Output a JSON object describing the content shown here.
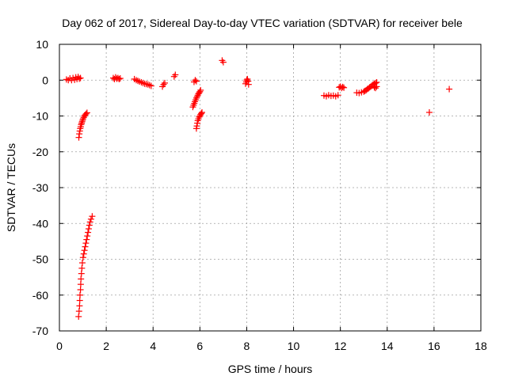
{
  "chart_data": {
    "type": "scatter",
    "title": "Day 062 of 2017, Sidereal Day-to-day VTEC variation (SDTVAR) for receiver bele",
    "xlabel": "GPS time / hours",
    "ylabel": "SDTVAR / TECUs",
    "xlim": [
      0,
      18
    ],
    "ylim": [
      -70,
      10
    ],
    "xticks": [
      0,
      2,
      4,
      6,
      8,
      10,
      12,
      14,
      16,
      18
    ],
    "yticks": [
      -70,
      -60,
      -50,
      -40,
      -30,
      -20,
      -10,
      0,
      10
    ],
    "grid": true,
    "marker": "+",
    "color": "#ff0000",
    "series": [
      {
        "name": "SDTVAR",
        "points": [
          [
            0.3,
            0.2
          ],
          [
            0.38,
            0.0
          ],
          [
            0.45,
            0.5
          ],
          [
            0.52,
            0.0
          ],
          [
            0.58,
            0.6
          ],
          [
            0.65,
            0.1
          ],
          [
            0.7,
            0.8
          ],
          [
            0.75,
            0.3
          ],
          [
            0.8,
            0.9
          ],
          [
            0.85,
            0.4
          ],
          [
            0.9,
            0.6
          ],
          [
            0.83,
            -16.0
          ],
          [
            0.85,
            -15.0
          ],
          [
            0.87,
            -14.2
          ],
          [
            0.89,
            -13.5
          ],
          [
            0.91,
            -13.0
          ],
          [
            0.93,
            -12.4
          ],
          [
            0.95,
            -12.0
          ],
          [
            0.97,
            -11.6
          ],
          [
            0.99,
            -11.2
          ],
          [
            1.01,
            -10.8
          ],
          [
            1.04,
            -10.4
          ],
          [
            1.07,
            -10.0
          ],
          [
            1.1,
            -9.7
          ],
          [
            1.14,
            -9.4
          ],
          [
            1.18,
            -9.1
          ],
          [
            0.82,
            -66.0
          ],
          [
            0.84,
            -64.5
          ],
          [
            0.86,
            -63.0
          ],
          [
            0.87,
            -61.5
          ],
          [
            0.88,
            -60.0
          ],
          [
            0.9,
            -58.5
          ],
          [
            0.91,
            -57.0
          ],
          [
            0.92,
            -55.5
          ],
          [
            0.94,
            -54.0
          ],
          [
            0.96,
            -52.5
          ],
          [
            0.98,
            -51.0
          ],
          [
            1.01,
            -49.5
          ],
          [
            1.04,
            -48.5
          ],
          [
            1.07,
            -47.5
          ],
          [
            1.1,
            -46.5
          ],
          [
            1.13,
            -45.5
          ],
          [
            1.16,
            -44.5
          ],
          [
            1.19,
            -43.5
          ],
          [
            1.22,
            -42.5
          ],
          [
            1.25,
            -41.5
          ],
          [
            1.28,
            -40.5
          ],
          [
            1.31,
            -39.6
          ],
          [
            1.35,
            -38.8
          ],
          [
            1.4,
            -38.0
          ],
          [
            2.3,
            0.6
          ],
          [
            2.35,
            0.3
          ],
          [
            2.4,
            0.8
          ],
          [
            2.45,
            0.4
          ],
          [
            2.5,
            0.6
          ],
          [
            2.55,
            0.3
          ],
          [
            2.6,
            0.5
          ],
          [
            3.2,
            0.3
          ],
          [
            3.28,
            0.0
          ],
          [
            3.35,
            -0.2
          ],
          [
            3.42,
            -0.4
          ],
          [
            3.5,
            -0.6
          ],
          [
            3.57,
            -0.8
          ],
          [
            3.64,
            -1.0
          ],
          [
            3.71,
            -1.1
          ],
          [
            3.78,
            -1.2
          ],
          [
            3.85,
            -1.4
          ],
          [
            3.92,
            -1.6
          ],
          [
            4.4,
            -1.8
          ],
          [
            4.45,
            -1.2
          ],
          [
            4.5,
            -0.8
          ],
          [
            4.9,
            1.0
          ],
          [
            4.95,
            1.5
          ],
          [
            5.7,
            -7.5
          ],
          [
            5.73,
            -7.0
          ],
          [
            5.76,
            -6.5
          ],
          [
            5.79,
            -6.0
          ],
          [
            5.82,
            -5.5
          ],
          [
            5.85,
            -5.0
          ],
          [
            5.88,
            -4.6
          ],
          [
            5.91,
            -4.2
          ],
          [
            5.94,
            -3.8
          ],
          [
            5.97,
            -3.5
          ],
          [
            6.0,
            -3.2
          ],
          [
            6.03,
            -2.8
          ],
          [
            5.75,
            -0.5
          ],
          [
            5.8,
            0.0
          ],
          [
            5.85,
            -0.3
          ],
          [
            5.85,
            -13.5
          ],
          [
            5.87,
            -12.8
          ],
          [
            5.89,
            -12.0
          ],
          [
            5.91,
            -11.3
          ],
          [
            5.94,
            -10.8
          ],
          [
            5.97,
            -10.3
          ],
          [
            6.0,
            -10.0
          ],
          [
            6.03,
            -9.6
          ],
          [
            6.06,
            -9.3
          ],
          [
            6.09,
            -9.0
          ],
          [
            6.95,
            5.5
          ],
          [
            7.0,
            5.0
          ],
          [
            7.95,
            -1.0
          ],
          [
            7.98,
            -0.5
          ],
          [
            8.0,
            0.0
          ],
          [
            8.03,
            0.3
          ],
          [
            8.06,
            -0.3
          ],
          [
            8.08,
            -1.2
          ],
          [
            11.3,
            -4.3
          ],
          [
            11.4,
            -4.5
          ],
          [
            11.5,
            -4.2
          ],
          [
            11.6,
            -4.4
          ],
          [
            11.7,
            -4.3
          ],
          [
            11.8,
            -4.5
          ],
          [
            11.9,
            -4.2
          ],
          [
            11.95,
            -2.0
          ],
          [
            12.0,
            -1.8
          ],
          [
            12.05,
            -2.2
          ],
          [
            12.1,
            -1.9
          ],
          [
            12.15,
            -2.1
          ],
          [
            12.7,
            -3.5
          ],
          [
            12.8,
            -3.6
          ],
          [
            12.9,
            -3.4
          ],
          [
            13.0,
            -3.2
          ],
          [
            13.05,
            -3.0
          ],
          [
            13.1,
            -2.8
          ],
          [
            13.15,
            -2.5
          ],
          [
            13.2,
            -2.3
          ],
          [
            13.25,
            -2.0
          ],
          [
            13.3,
            -1.8
          ],
          [
            13.35,
            -1.5
          ],
          [
            13.4,
            -1.2
          ],
          [
            13.45,
            -1.0
          ],
          [
            13.5,
            -0.8
          ],
          [
            13.55,
            -0.6
          ],
          [
            13.5,
            -2.2
          ],
          [
            13.55,
            -1.8
          ],
          [
            13.45,
            -2.0
          ],
          [
            15.8,
            -9.0
          ],
          [
            16.65,
            -2.5
          ]
        ]
      }
    ]
  }
}
